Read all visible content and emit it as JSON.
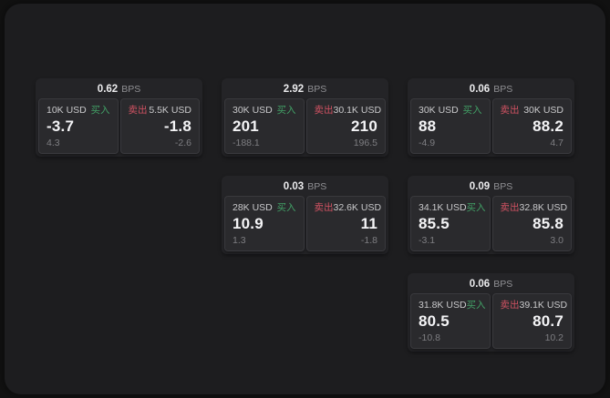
{
  "labels": {
    "bps_suffix": "BPS",
    "buy": "买入",
    "sell": "卖出"
  },
  "colors": {
    "page_bg": "#121212",
    "panel_bg": "#1d1d1f",
    "card_bg": "#242427",
    "subcard_bg": "#2a2a2d",
    "subcard_border": "#39393d",
    "buy_green": "#42a066",
    "sell_red": "#d05262",
    "value_white": "#f4f4f6",
    "amount_gray": "#c9c9cb",
    "delta_gray": "#7e7e82",
    "bps_gray": "#909094"
  },
  "cards": [
    {
      "bps": "0.62",
      "buy": {
        "amount": "10K USD",
        "price": "-3.7",
        "delta": "4.3"
      },
      "sell": {
        "amount": "5.5K USD",
        "price": "-1.8",
        "delta": "-2.6"
      }
    },
    {
      "bps": "2.92",
      "buy": {
        "amount": "30K USD",
        "price": "201",
        "delta": "-188.1"
      },
      "sell": {
        "amount": "30.1K USD",
        "price": "210",
        "delta": "196.5"
      }
    },
    {
      "bps": "0.06",
      "buy": {
        "amount": "30K USD",
        "price": "88",
        "delta": "-4.9"
      },
      "sell": {
        "amount": "30K USD",
        "price": "88.2",
        "delta": "4.7"
      }
    },
    {
      "bps": "0.03",
      "buy": {
        "amount": "28K USD",
        "price": "10.9",
        "delta": "1.3"
      },
      "sell": {
        "amount": "32.6K USD",
        "price": "11",
        "delta": "-1.8"
      }
    },
    {
      "bps": "0.09",
      "buy": {
        "amount": "34.1K USD",
        "price": "85.5",
        "delta": "-3.1"
      },
      "sell": {
        "amount": "32.8K USD",
        "price": "85.8",
        "delta": "3.0"
      }
    },
    {
      "bps": "0.06",
      "buy": {
        "amount": "31.8K USD",
        "price": "80.5",
        "delta": "-10.8"
      },
      "sell": {
        "amount": "39.1K USD",
        "price": "80.7",
        "delta": "10.2"
      }
    }
  ]
}
